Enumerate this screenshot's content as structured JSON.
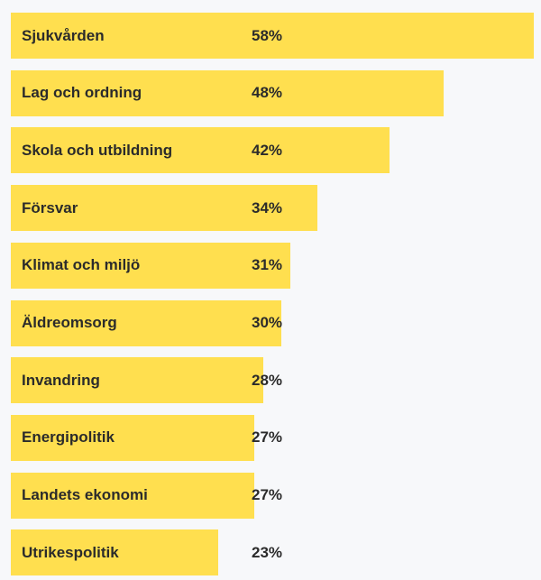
{
  "chart_data": {
    "type": "bar",
    "orientation": "horizontal",
    "title": "",
    "xlabel": "",
    "ylabel": "",
    "xlim": [
      0,
      58
    ],
    "grid": false,
    "bar_color": "#ffdf4f",
    "background_color": "#f7f8fa",
    "text_color": "#2b2b2b",
    "categories": [
      "Sjukvården",
      "Lag och ordning",
      "Skola och utbildning",
      "Försvar",
      "Klimat och miljö",
      "Äldreomsorg",
      "Invandring",
      "Energipolitik",
      "Landets ekonomi",
      "Utrikespolitik"
    ],
    "values": [
      58,
      48,
      42,
      34,
      31,
      30,
      28,
      27,
      27,
      23
    ],
    "value_labels": [
      "58%",
      "48%",
      "42%",
      "34%",
      "31%",
      "30%",
      "28%",
      "27%",
      "27%",
      "23%"
    ]
  }
}
